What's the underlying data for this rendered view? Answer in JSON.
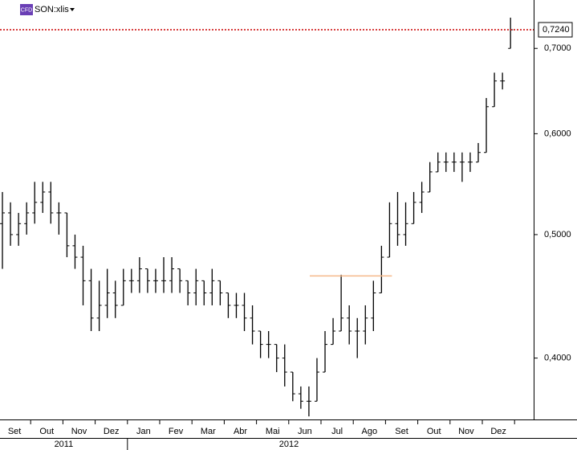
{
  "chart_data": {
    "type": "ohlc",
    "symbol": "SON:xlis",
    "badge": "CFD",
    "log_scale": true,
    "color": "#000000",
    "ylim": [
      0.358,
      0.764
    ],
    "yticks": [
      {
        "value": 0.4,
        "label": "0,4000"
      },
      {
        "value": 0.5,
        "label": "0,5000"
      },
      {
        "value": 0.6,
        "label": "0,6000"
      },
      {
        "value": 0.7,
        "label": "0,7000"
      }
    ],
    "ref_line": {
      "value": 0.724,
      "label": "0,7240",
      "color": "#cc0000"
    },
    "level_line": {
      "value": 0.464,
      "from": "Jul",
      "to": "Ago",
      "color": "#f5b98a"
    },
    "years": [
      {
        "label": "2011",
        "months": [
          {
            "label": "Set",
            "bars": [
              [
                0.51,
                0.54,
                0.47,
                0.52
              ],
              [
                0.52,
                0.53,
                0.49,
                0.5
              ],
              [
                0.5,
                0.52,
                0.49,
                0.51
              ],
              [
                0.51,
                0.53,
                0.5,
                0.52
              ]
            ]
          },
          {
            "label": "Out",
            "bars": [
              [
                0.52,
                0.55,
                0.51,
                0.53
              ],
              [
                0.53,
                0.55,
                0.52,
                0.54
              ],
              [
                0.54,
                0.55,
                0.51,
                0.52
              ],
              [
                0.52,
                0.53,
                0.5,
                0.52
              ]
            ]
          },
          {
            "label": "Nov",
            "bars": [
              [
                0.52,
                0.52,
                0.48,
                0.49
              ],
              [
                0.49,
                0.5,
                0.47,
                0.48
              ],
              [
                0.48,
                0.49,
                0.44,
                0.46
              ],
              [
                0.46,
                0.47,
                0.42,
                0.43
              ]
            ]
          },
          {
            "label": "Dez",
            "bars": [
              [
                0.43,
                0.46,
                0.42,
                0.44
              ],
              [
                0.44,
                0.47,
                0.43,
                0.45
              ],
              [
                0.45,
                0.46,
                0.43,
                0.44
              ],
              [
                0.44,
                0.47,
                0.44,
                0.46
              ]
            ]
          }
        ]
      },
      {
        "label": "2012",
        "months": [
          {
            "label": "Jan",
            "bars": [
              [
                0.46,
                0.47,
                0.45,
                0.46
              ],
              [
                0.46,
                0.48,
                0.45,
                0.47
              ],
              [
                0.47,
                0.47,
                0.45,
                0.46
              ],
              [
                0.46,
                0.47,
                0.45,
                0.46
              ]
            ]
          },
          {
            "label": "Fev",
            "bars": [
              [
                0.46,
                0.48,
                0.45,
                0.46
              ],
              [
                0.46,
                0.48,
                0.45,
                0.47
              ],
              [
                0.47,
                0.47,
                0.45,
                0.46
              ],
              [
                0.46,
                0.46,
                0.44,
                0.45
              ]
            ]
          },
          {
            "label": "Mar",
            "bars": [
              [
                0.45,
                0.47,
                0.44,
                0.46
              ],
              [
                0.46,
                0.46,
                0.44,
                0.45
              ],
              [
                0.45,
                0.47,
                0.44,
                0.46
              ],
              [
                0.46,
                0.46,
                0.44,
                0.45
              ]
            ]
          },
          {
            "label": "Abr",
            "bars": [
              [
                0.45,
                0.45,
                0.43,
                0.44
              ],
              [
                0.44,
                0.45,
                0.43,
                0.44
              ],
              [
                0.44,
                0.45,
                0.42,
                0.43
              ],
              [
                0.43,
                0.44,
                0.41,
                0.42
              ]
            ]
          },
          {
            "label": "Mai",
            "bars": [
              [
                0.42,
                0.42,
                0.4,
                0.41
              ],
              [
                0.41,
                0.42,
                0.4,
                0.41
              ],
              [
                0.41,
                0.41,
                0.39,
                0.4
              ],
              [
                0.4,
                0.41,
                0.38,
                0.39
              ]
            ]
          },
          {
            "label": "Jun",
            "bars": [
              [
                0.39,
                0.39,
                0.37,
                0.375
              ],
              [
                0.375,
                0.38,
                0.365,
                0.37
              ],
              [
                0.37,
                0.38,
                0.36,
                0.37
              ],
              [
                0.37,
                0.4,
                0.37,
                0.39
              ]
            ]
          },
          {
            "label": "Jul",
            "bars": [
              [
                0.39,
                0.42,
                0.39,
                0.41
              ],
              [
                0.41,
                0.43,
                0.41,
                0.42
              ],
              [
                0.42,
                0.465,
                0.42,
                0.43
              ],
              [
                0.43,
                0.44,
                0.41,
                0.42
              ]
            ]
          },
          {
            "label": "Ago",
            "bars": [
              [
                0.42,
                0.43,
                0.4,
                0.42
              ],
              [
                0.42,
                0.44,
                0.41,
                0.43
              ],
              [
                0.43,
                0.46,
                0.42,
                0.45
              ],
              [
                0.45,
                0.49,
                0.45,
                0.48
              ]
            ]
          },
          {
            "label": "Set",
            "bars": [
              [
                0.48,
                0.53,
                0.48,
                0.51
              ],
              [
                0.51,
                0.54,
                0.49,
                0.5
              ],
              [
                0.5,
                0.53,
                0.49,
                0.51
              ],
              [
                0.51,
                0.54,
                0.51,
                0.53
              ]
            ]
          },
          {
            "label": "Out",
            "bars": [
              [
                0.53,
                0.55,
                0.52,
                0.54
              ],
              [
                0.54,
                0.57,
                0.54,
                0.56
              ],
              [
                0.56,
                0.58,
                0.56,
                0.57
              ],
              [
                0.57,
                0.58,
                0.56,
                0.57
              ]
            ]
          },
          {
            "label": "Nov",
            "bars": [
              [
                0.57,
                0.58,
                0.56,
                0.57
              ],
              [
                0.57,
                0.58,
                0.55,
                0.57
              ],
              [
                0.57,
                0.58,
                0.56,
                0.57
              ],
              [
                0.57,
                0.59,
                0.57,
                0.58
              ]
            ]
          },
          {
            "label": "Dez",
            "bars": [
              [
                0.58,
                0.64,
                0.58,
                0.63
              ],
              [
                0.63,
                0.67,
                0.63,
                0.66
              ],
              [
                0.66,
                0.67,
                0.65,
                0.66
              ],
              [
                0.7,
                0.74,
                0.7,
                0.724
              ]
            ]
          }
        ]
      }
    ]
  }
}
